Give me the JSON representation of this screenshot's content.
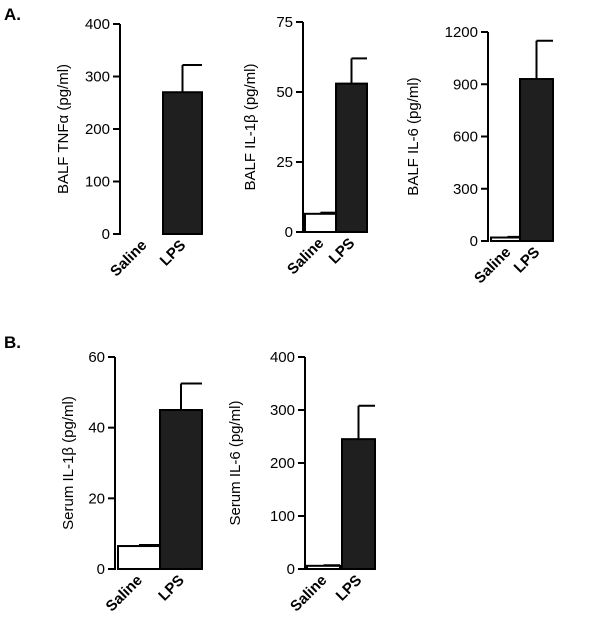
{
  "panels": [
    {
      "label": "A."
    },
    {
      "label": "B."
    }
  ],
  "chart_data": [
    {
      "type": "bar",
      "panel": "A.",
      "ylabel": "BALF TNFα (pg/ml)",
      "categories": [
        "Saline",
        "LPS"
      ],
      "values": [
        0,
        270
      ],
      "errors": [
        0,
        52
      ],
      "colors": [
        "#ffffff",
        "#1f1f1f"
      ],
      "ylim": [
        0,
        400
      ],
      "yticks": [
        0,
        100,
        200,
        300,
        400
      ]
    },
    {
      "type": "bar",
      "panel": "A.",
      "ylabel": "BALF IL-1β (pg/ml)",
      "categories": [
        "Saline",
        "LPS"
      ],
      "values": [
        6.5,
        53
      ],
      "errors": [
        0.4,
        9
      ],
      "colors": [
        "#ffffff",
        "#1f1f1f"
      ],
      "ylim": [
        0,
        75
      ],
      "yticks": [
        0,
        25,
        50,
        75
      ]
    },
    {
      "type": "bar",
      "panel": "A.",
      "ylabel": "BALF IL-6 (pg/ml)",
      "categories": [
        "Saline",
        "LPS"
      ],
      "values": [
        20,
        930
      ],
      "errors": [
        4,
        220
      ],
      "colors": [
        "#ffffff",
        "#1f1f1f"
      ],
      "ylim": [
        0,
        1200
      ],
      "yticks": [
        0,
        300,
        600,
        900,
        1200
      ]
    },
    {
      "type": "bar",
      "panel": "B.",
      "ylabel": "Serum IL-1β (pg/ml)",
      "categories": [
        "Saline",
        "LPS"
      ],
      "values": [
        6.5,
        45
      ],
      "errors": [
        0.3,
        7.5
      ],
      "colors": [
        "#ffffff",
        "#1f1f1f"
      ],
      "ylim": [
        0,
        60
      ],
      "yticks": [
        0,
        20,
        40,
        60
      ]
    },
    {
      "type": "bar",
      "panel": "B.",
      "ylabel": "Serum IL-6 (pg/ml)",
      "categories": [
        "Saline",
        "LPS"
      ],
      "values": [
        6,
        245
      ],
      "errors": [
        1,
        63
      ],
      "colors": [
        "#ffffff",
        "#1f1f1f"
      ],
      "ylim": [
        0,
        400
      ],
      "yticks": [
        0,
        100,
        200,
        300,
        400
      ]
    }
  ]
}
